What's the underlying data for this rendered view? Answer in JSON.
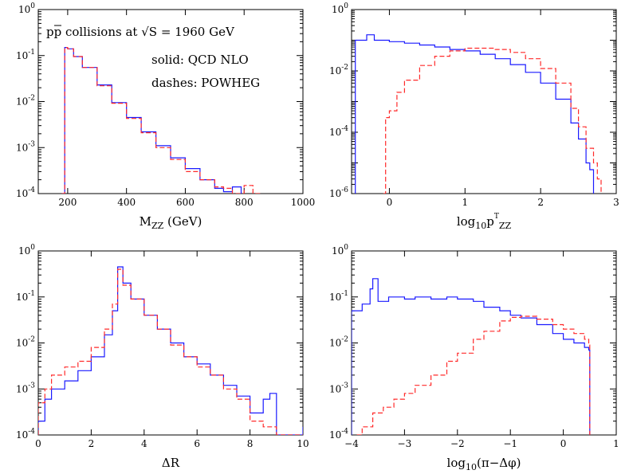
{
  "colors": {
    "solid_series": "#1a1aff",
    "dashed_series": "#ff2a2a",
    "axes": "#000000"
  },
  "chart_data": [
    {
      "type": "line",
      "title": "",
      "xlabel": {
        "main": "M",
        "sub": "ZZ",
        "rest": " (GeV)"
      },
      "ylabel": "",
      "xlim": [
        100,
        1000
      ],
      "ylim": [
        0.0001,
        1
      ],
      "log_y": true,
      "grid": false,
      "xticks": [
        "200",
        "400",
        "600",
        "800",
        "1000"
      ],
      "yticks": [
        {
          "base": "10",
          "exp": "-4"
        },
        {
          "base": "10",
          "exp": "-3"
        },
        {
          "base": "10",
          "exp": "-2"
        },
        {
          "base": "10",
          "exp": "-1"
        },
        {
          "base": "10",
          "exp": "0"
        }
      ],
      "annotations": {
        "line1": {
          "pp": "pp",
          "text": " collisions at ",
          "sqrt": "√S",
          "rest": " = 1960 GeV"
        },
        "line2": "solid: QCD NLO",
        "line3": "dashes: POWHEG"
      },
      "series": [
        {
          "style": "solid",
          "x": [
            180,
            190,
            200,
            220,
            250,
            300,
            350,
            400,
            450,
            500,
            550,
            600,
            650,
            700,
            730,
            760,
            790
          ],
          "values": [
            0.0001,
            0.15,
            0.14,
            0.095,
            0.055,
            0.023,
            0.0095,
            0.0045,
            0.0022,
            0.0011,
            0.0006,
            0.00035,
            0.0002,
            0.00013,
            0.00011,
            0.00014,
            0.0001
          ]
        },
        {
          "style": "dashed",
          "x": [
            180,
            190,
            200,
            220,
            250,
            300,
            350,
            400,
            450,
            500,
            550,
            600,
            650,
            700,
            730,
            760,
            800,
            830,
            860
          ],
          "values": [
            0.0001,
            0.15,
            0.14,
            0.095,
            0.055,
            0.022,
            0.0092,
            0.0043,
            0.0021,
            0.001,
            0.00055,
            0.0003,
            0.0002,
            0.00014,
            0.00013,
            0.0001,
            0.00015,
            0.0001,
            0.0001
          ]
        }
      ]
    },
    {
      "type": "line",
      "title": "",
      "xlabel": {
        "main": "log",
        "sub": "10",
        "rest": "p",
        "sup": "T",
        "sub2": "ZZ"
      },
      "ylabel": "",
      "xlim": [
        -0.5,
        3
      ],
      "ylim": [
        1e-06,
        1
      ],
      "log_y": true,
      "grid": false,
      "xticks": [
        "0",
        "1",
        "2",
        "3"
      ],
      "yticks": [
        {
          "base": "10",
          "exp": "-6"
        },
        {
          "base": "10",
          "exp": "-4"
        },
        {
          "base": "10",
          "exp": "-2"
        },
        {
          "base": "10",
          "exp": "0"
        }
      ],
      "series": [
        {
          "style": "solid",
          "x": [
            -0.45,
            -0.3,
            -0.2,
            0,
            0.2,
            0.4,
            0.6,
            0.8,
            1.0,
            1.2,
            1.4,
            1.6,
            1.8,
            2.0,
            2.2,
            2.4,
            2.5,
            2.6,
            2.65,
            2.7
          ],
          "values": [
            0.1,
            0.15,
            0.1,
            0.09,
            0.08,
            0.07,
            0.06,
            0.05,
            0.045,
            0.035,
            0.025,
            0.016,
            0.009,
            0.004,
            0.0012,
            0.0002,
            6e-05,
            1e-05,
            6e-06,
            1e-06
          ]
        },
        {
          "style": "dashed",
          "x": [
            -0.08,
            -0.05,
            0,
            0.1,
            0.2,
            0.4,
            0.6,
            0.8,
            1.0,
            1.2,
            1.4,
            1.6,
            1.8,
            2.0,
            2.2,
            2.4,
            2.5,
            2.6,
            2.7,
            2.75,
            2.8
          ],
          "values": [
            1e-06,
            0.0003,
            0.0005,
            0.002,
            0.005,
            0.015,
            0.03,
            0.045,
            0.055,
            0.055,
            0.05,
            0.04,
            0.025,
            0.012,
            0.004,
            0.0006,
            0.00015,
            3e-05,
            1e-05,
            3e-06,
            1e-06
          ]
        }
      ]
    },
    {
      "type": "line",
      "title": "",
      "xlabel": {
        "main": "ΔR",
        "sub": "",
        "rest": ""
      },
      "ylabel": "",
      "xlim": [
        0,
        10
      ],
      "ylim": [
        0.0001,
        1
      ],
      "log_y": true,
      "grid": false,
      "xticks": [
        "0",
        "2",
        "4",
        "6",
        "8",
        "10"
      ],
      "yticks": [
        {
          "base": "10",
          "exp": "-4"
        },
        {
          "base": "10",
          "exp": "-3"
        },
        {
          "base": "10",
          "exp": "-2"
        },
        {
          "base": "10",
          "exp": "-1"
        },
        {
          "base": "10",
          "exp": "0"
        }
      ],
      "series": [
        {
          "style": "solid",
          "x": [
            0,
            0.25,
            0.5,
            1,
            1.5,
            2,
            2.5,
            2.8,
            3.0,
            3.2,
            3.5,
            4,
            4.5,
            5,
            5.5,
            6,
            6.5,
            7,
            7.5,
            8,
            8.5,
            8.75,
            9,
            9.5,
            10
          ],
          "values": [
            0.0002,
            0.0006,
            0.001,
            0.0015,
            0.0025,
            0.005,
            0.015,
            0.05,
            0.45,
            0.2,
            0.09,
            0.04,
            0.02,
            0.01,
            0.005,
            0.0035,
            0.002,
            0.0012,
            0.0007,
            0.0003,
            0.0006,
            0.0008,
            0.0001,
            0.0001,
            0.00015
          ]
        },
        {
          "style": "dashed",
          "x": [
            0,
            0.25,
            0.5,
            1,
            1.5,
            2,
            2.5,
            2.8,
            3.0,
            3.2,
            3.5,
            4,
            4.5,
            5,
            5.5,
            6,
            6.5,
            7,
            7.5,
            8,
            8.5,
            9,
            9.5,
            10
          ],
          "values": [
            0.0005,
            0.001,
            0.002,
            0.003,
            0.004,
            0.008,
            0.02,
            0.07,
            0.4,
            0.18,
            0.09,
            0.04,
            0.02,
            0.009,
            0.005,
            0.003,
            0.002,
            0.001,
            0.0006,
            0.0002,
            0.00015,
            0.0001,
            0.0001,
            0.0001
          ]
        }
      ]
    },
    {
      "type": "line",
      "title": "",
      "xlabel": {
        "main": "log",
        "sub": "10",
        "rest": "(π−Δφ)"
      },
      "ylabel": "",
      "xlim": [
        -4,
        1
      ],
      "ylim": [
        0.0001,
        1
      ],
      "log_y": true,
      "grid": false,
      "xticks": [
        "−4",
        "−3",
        "−2",
        "−1",
        "0",
        "1"
      ],
      "yticks": [
        {
          "base": "10",
          "exp": "-4"
        },
        {
          "base": "10",
          "exp": "-3"
        },
        {
          "base": "10",
          "exp": "-2"
        },
        {
          "base": "10",
          "exp": "-1"
        },
        {
          "base": "10",
          "exp": "0"
        }
      ],
      "series": [
        {
          "style": "solid",
          "x": [
            -4,
            -3.8,
            -3.65,
            -3.6,
            -3.5,
            -3.3,
            -3,
            -2.8,
            -2.5,
            -2.2,
            -2,
            -1.7,
            -1.5,
            -1.2,
            -1,
            -0.8,
            -0.5,
            -0.2,
            0,
            0.2,
            0.4,
            0.48,
            0.5
          ],
          "values": [
            0.05,
            0.07,
            0.15,
            0.25,
            0.08,
            0.1,
            0.09,
            0.1,
            0.09,
            0.1,
            0.09,
            0.08,
            0.06,
            0.05,
            0.04,
            0.035,
            0.025,
            0.016,
            0.012,
            0.01,
            0.008,
            0.007,
            0.0001
          ]
        },
        {
          "style": "dashed",
          "x": [
            -3.9,
            -3.8,
            -3.6,
            -3.4,
            -3.2,
            -3,
            -2.8,
            -2.5,
            -2.2,
            -2,
            -1.7,
            -1.5,
            -1.2,
            -1,
            -0.8,
            -0.5,
            -0.2,
            0,
            0.2,
            0.4,
            0.48,
            0.5
          ],
          "values": [
            0.0001,
            0.00015,
            0.0003,
            0.0004,
            0.0006,
            0.0008,
            0.0012,
            0.002,
            0.004,
            0.006,
            0.012,
            0.018,
            0.03,
            0.036,
            0.038,
            0.033,
            0.025,
            0.02,
            0.016,
            0.012,
            0.009,
            0.0001
          ]
        }
      ]
    }
  ]
}
